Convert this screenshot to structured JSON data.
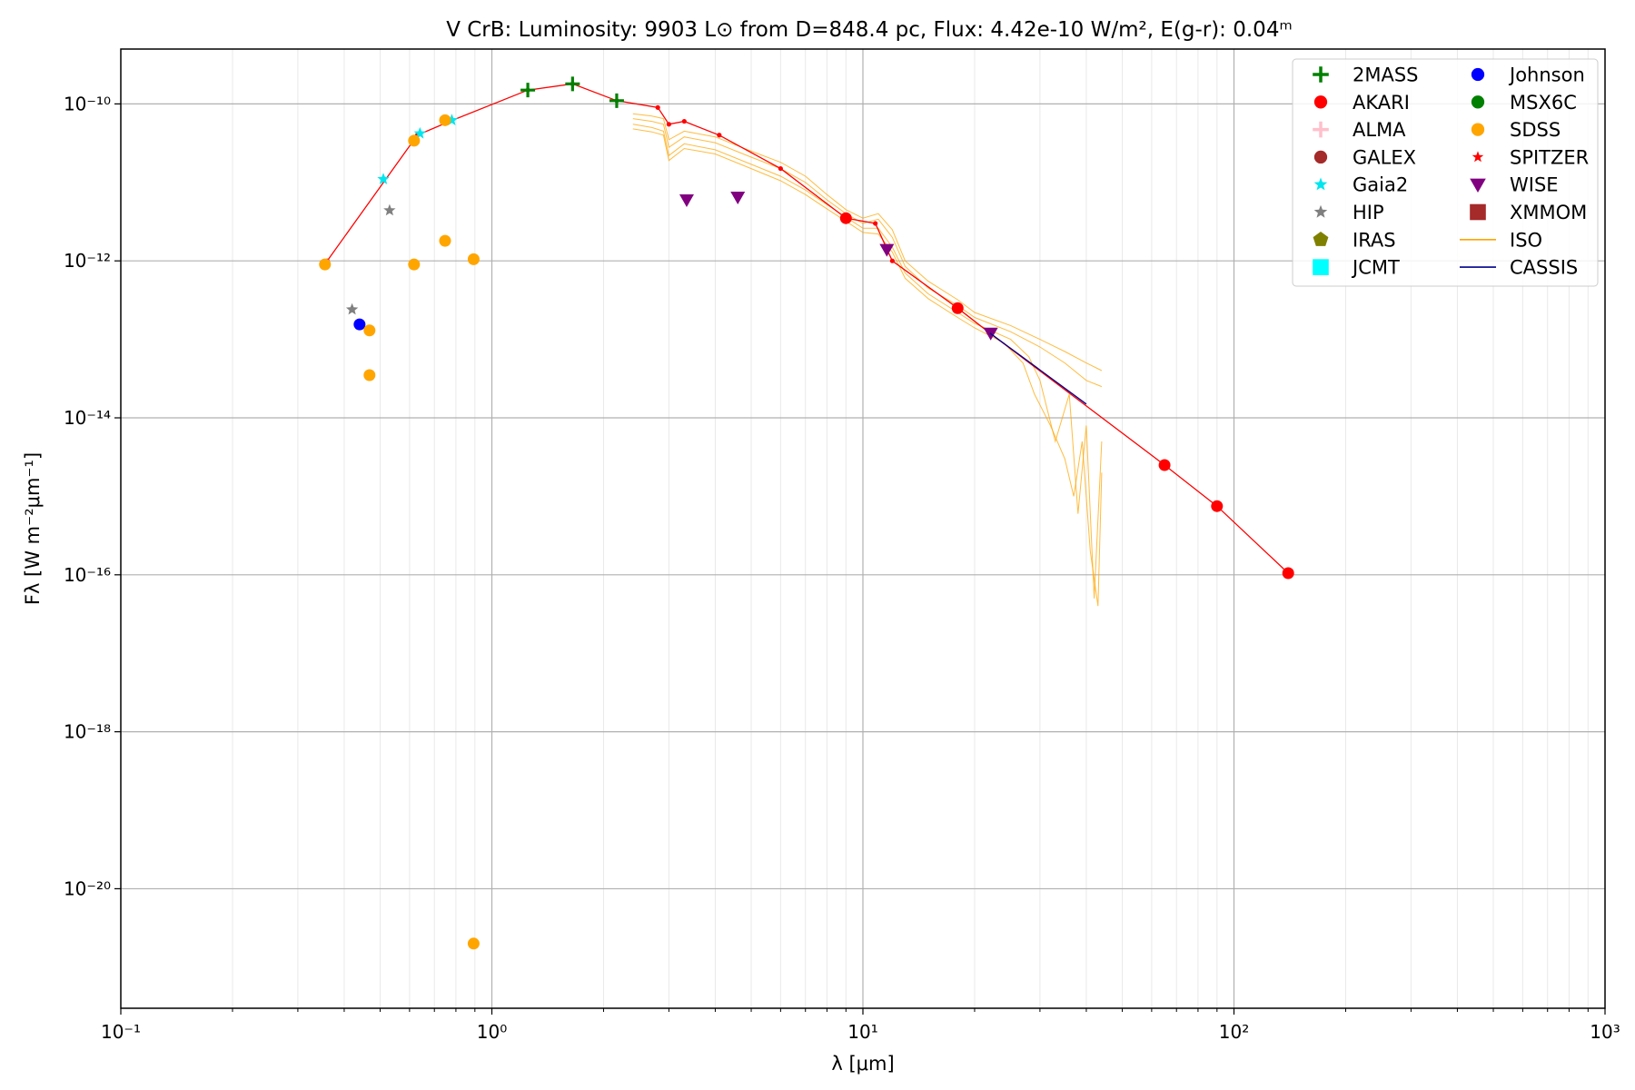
{
  "chart_data": {
    "type": "scatter",
    "title": "V CrB:  Luminosity: 9903 L⊙ from D=848.4 pc, Flux: 4.42e-10 W/m², E(g-r): 0.04ᵐ",
    "xlabel": "λ [μm]",
    "ylabel": "Fλ [W m⁻²μm⁻¹]",
    "x_scale": "log",
    "y_scale": "log",
    "xlim": [
      0.1,
      1000
    ],
    "ylim": [
      3e-22,
      5e-10
    ],
    "x_ticks": [
      {
        "value": 0.1,
        "label": "10⁻¹"
      },
      {
        "value": 1,
        "label": "10⁰"
      },
      {
        "value": 10,
        "label": "10¹"
      },
      {
        "value": 100,
        "label": "10²"
      },
      {
        "value": 1000,
        "label": "10³"
      }
    ],
    "y_ticks": [
      {
        "value": 1e-20,
        "label": "10⁻²⁰"
      },
      {
        "value": 1e-18,
        "label": "10⁻¹⁸"
      },
      {
        "value": 1e-16,
        "label": "10⁻¹⁶"
      },
      {
        "value": 1e-14,
        "label": "10⁻¹⁴"
      },
      {
        "value": 1e-12,
        "label": "10⁻¹²"
      },
      {
        "value": 1e-10,
        "label": "10⁻¹⁰"
      }
    ],
    "grid": true,
    "legend_position": "top-right",
    "model_line": {
      "color": "#ff0000",
      "points": [
        [
          0.36,
          1e-12
        ],
        [
          0.63,
          4e-11
        ],
        [
          0.77,
          6e-11
        ],
        [
          1.25,
          1.5e-10
        ],
        [
          1.65,
          1.8e-10
        ],
        [
          2.17,
          1.1e-10
        ],
        [
          2.8,
          9e-11
        ],
        [
          3.0,
          5.5e-11
        ],
        [
          3.3,
          6e-11
        ],
        [
          4.1,
          4e-11
        ],
        [
          6.0,
          1.5e-11
        ],
        [
          9.0,
          3.5e-12
        ],
        [
          10.8,
          3e-12
        ],
        [
          12.0,
          1e-12
        ],
        [
          18.0,
          2.5e-13
        ],
        [
          22.0,
          1.2e-13
        ],
        [
          65.0,
          2.5e-15
        ],
        [
          90.0,
          7.5e-16
        ],
        [
          140.0,
          1.05e-16
        ]
      ]
    },
    "series": [
      {
        "name": "2MASS",
        "marker": "plus",
        "color": "#008000",
        "points": [
          [
            1.25,
            1.5e-10
          ],
          [
            1.65,
            1.8e-10
          ],
          [
            2.17,
            1.1e-10
          ]
        ]
      },
      {
        "name": "AKARI",
        "marker": "circle",
        "color": "#ff0000",
        "points": [
          [
            9.0,
            3.5e-12
          ],
          [
            18.0,
            2.5e-13
          ],
          [
            65.0,
            2.5e-15
          ],
          [
            90.0,
            7.5e-16
          ],
          [
            140.0,
            1.05e-16
          ]
        ]
      },
      {
        "name": "ALMA",
        "marker": "plus",
        "color": "#ffc0cb",
        "points": []
      },
      {
        "name": "GALEX",
        "marker": "circle",
        "color": "#a52a2a",
        "points": []
      },
      {
        "name": "Gaia2",
        "marker": "star",
        "color": "#00e5ee",
        "points": [
          [
            0.51,
            1.1e-11
          ],
          [
            0.64,
            4.2e-11
          ],
          [
            0.78,
            6.2e-11
          ]
        ]
      },
      {
        "name": "HIP",
        "marker": "star",
        "color": "#808080",
        "points": [
          [
            0.42,
            2.4e-13
          ],
          [
            0.53,
            4.4e-12
          ]
        ]
      },
      {
        "name": "IRAS",
        "marker": "pentagon",
        "color": "#808000",
        "points": []
      },
      {
        "name": "JCMT",
        "marker": "square",
        "color": "#00ffff",
        "points": []
      },
      {
        "name": "Johnson",
        "marker": "circle",
        "color": "#0000ff",
        "points": [
          [
            0.44,
            1.55e-13
          ]
        ]
      },
      {
        "name": "MSX6C",
        "marker": "circle",
        "color": "#008000",
        "points": []
      },
      {
        "name": "SDSS",
        "marker": "circle",
        "color": "#ffa500",
        "points": [
          [
            0.355,
            9e-13
          ],
          [
            0.468,
            1.3e-13
          ],
          [
            0.468,
            3.5e-14
          ],
          [
            0.617,
            3.4e-11
          ],
          [
            0.617,
            9e-13
          ],
          [
            0.748,
            6.2e-11
          ],
          [
            0.748,
            1.8e-12
          ],
          [
            0.893,
            1.05e-12
          ],
          [
            0.893,
            2e-21
          ]
        ]
      },
      {
        "name": "SPITZER",
        "marker": "smallstar",
        "color": "#ff0000",
        "points": []
      },
      {
        "name": "WISE",
        "marker": "triangle-down",
        "color": "#800080",
        "points": [
          [
            3.35,
            6e-12
          ],
          [
            4.6,
            6.5e-12
          ],
          [
            11.6,
            1.4e-12
          ],
          [
            22.1,
            1.2e-13
          ]
        ]
      },
      {
        "name": "XMMOM",
        "marker": "square",
        "color": "#a52a2a",
        "points": []
      },
      {
        "name": "ISO",
        "marker": "line",
        "color": "#ffa500",
        "points": []
      },
      {
        "name": "CASSIS",
        "marker": "line",
        "color": "#00008b",
        "points": [
          [
            22.0,
            1.2e-13
          ],
          [
            40.0,
            1.5e-14
          ]
        ]
      }
    ],
    "iso_spectra": {
      "color": "#ffa500",
      "curves": [
        [
          [
            2.4,
            7.5e-11
          ],
          [
            2.7,
            7e-11
          ],
          [
            2.9,
            6.5e-11
          ],
          [
            3.0,
            3.5e-11
          ],
          [
            3.3,
            4.5e-11
          ],
          [
            4.0,
            3.8e-11
          ],
          [
            5.0,
            2.5e-11
          ],
          [
            6.0,
            1.8e-11
          ],
          [
            7.0,
            1.2e-11
          ],
          [
            8.0,
            7e-12
          ],
          [
            9.0,
            4.5e-12
          ],
          [
            10.0,
            3.5e-12
          ],
          [
            11.0,
            4e-12
          ],
          [
            12.0,
            2.5e-12
          ],
          [
            13.0,
            1e-12
          ],
          [
            15.0,
            5.5e-13
          ],
          [
            18.0,
            3.2e-13
          ],
          [
            20.0,
            2.2e-13
          ],
          [
            25.0,
            1.5e-13
          ],
          [
            30.0,
            1e-13
          ],
          [
            35.0,
            7e-14
          ],
          [
            40.0,
            5e-14
          ],
          [
            44.0,
            4e-14
          ]
        ],
        [
          [
            2.4,
            6.5e-11
          ],
          [
            2.7,
            6e-11
          ],
          [
            2.9,
            5.5e-11
          ],
          [
            3.0,
            2.8e-11
          ],
          [
            3.3,
            3.8e-11
          ],
          [
            4.0,
            3.2e-11
          ],
          [
            5.0,
            2.1e-11
          ],
          [
            6.0,
            1.5e-11
          ],
          [
            7.0,
            1e-11
          ],
          [
            8.0,
            6e-12
          ],
          [
            9.0,
            4e-12
          ],
          [
            10.0,
            3e-12
          ],
          [
            11.0,
            3.4e-12
          ],
          [
            12.0,
            2e-12
          ],
          [
            13.0,
            8.5e-13
          ],
          [
            15.0,
            4.5e-13
          ],
          [
            18.0,
            2.7e-13
          ],
          [
            20.0,
            1.9e-13
          ],
          [
            25.0,
            1.25e-13
          ],
          [
            30.0,
            8e-14
          ],
          [
            35.0,
            5e-14
          ],
          [
            40.0,
            3e-14
          ],
          [
            44.0,
            2.5e-14
          ]
        ],
        [
          [
            2.4,
            5.5e-11
          ],
          [
            2.7,
            5e-11
          ],
          [
            2.9,
            4.5e-11
          ],
          [
            3.0,
            2.2e-11
          ],
          [
            3.3,
            3.1e-11
          ],
          [
            4.0,
            2.6e-11
          ],
          [
            5.0,
            1.7e-11
          ],
          [
            6.0,
            1.2e-11
          ],
          [
            7.0,
            8e-12
          ],
          [
            8.0,
            5.2e-12
          ],
          [
            9.0,
            3.6e-12
          ],
          [
            10.0,
            2.6e-12
          ],
          [
            11.0,
            2.6e-12
          ],
          [
            12.0,
            1.5e-12
          ],
          [
            13.0,
            7e-13
          ],
          [
            15.0,
            3.8e-13
          ],
          [
            18.0,
            2.2e-13
          ],
          [
            20.0,
            1.6e-13
          ],
          [
            25.0,
            1e-13
          ],
          [
            28.0,
            6e-14
          ],
          [
            30.0,
            3e-14
          ],
          [
            33.0,
            5e-15
          ],
          [
            36.0,
            2e-14
          ],
          [
            38.0,
            6e-16
          ],
          [
            40.0,
            8e-15
          ],
          [
            42.0,
            5e-17
          ],
          [
            44.0,
            5e-15
          ]
        ],
        [
          [
            2.4,
            4.8e-11
          ],
          [
            2.7,
            4.4e-11
          ],
          [
            2.9,
            4e-11
          ],
          [
            3.0,
            1.9e-11
          ],
          [
            3.3,
            2.7e-11
          ],
          [
            4.0,
            2.3e-11
          ],
          [
            5.0,
            1.5e-11
          ],
          [
            6.0,
            1.05e-11
          ],
          [
            7.0,
            7e-12
          ],
          [
            8.0,
            4.6e-12
          ],
          [
            9.0,
            3.2e-12
          ],
          [
            10.0,
            2.3e-12
          ],
          [
            11.0,
            2.2e-12
          ],
          [
            12.0,
            1.3e-12
          ],
          [
            13.0,
            6e-13
          ],
          [
            15.0,
            3.3e-13
          ],
          [
            18.0,
            1.9e-13
          ],
          [
            20.0,
            1.4e-13
          ],
          [
            24.0,
            9e-14
          ],
          [
            27.0,
            5e-14
          ],
          [
            29.0,
            2e-14
          ],
          [
            32.0,
            8e-15
          ],
          [
            35.0,
            3e-15
          ],
          [
            37.0,
            1e-15
          ],
          [
            39.0,
            5e-15
          ],
          [
            41.0,
            2e-16
          ],
          [
            43.0,
            4e-17
          ],
          [
            44.0,
            2e-15
          ]
        ]
      ]
    }
  }
}
